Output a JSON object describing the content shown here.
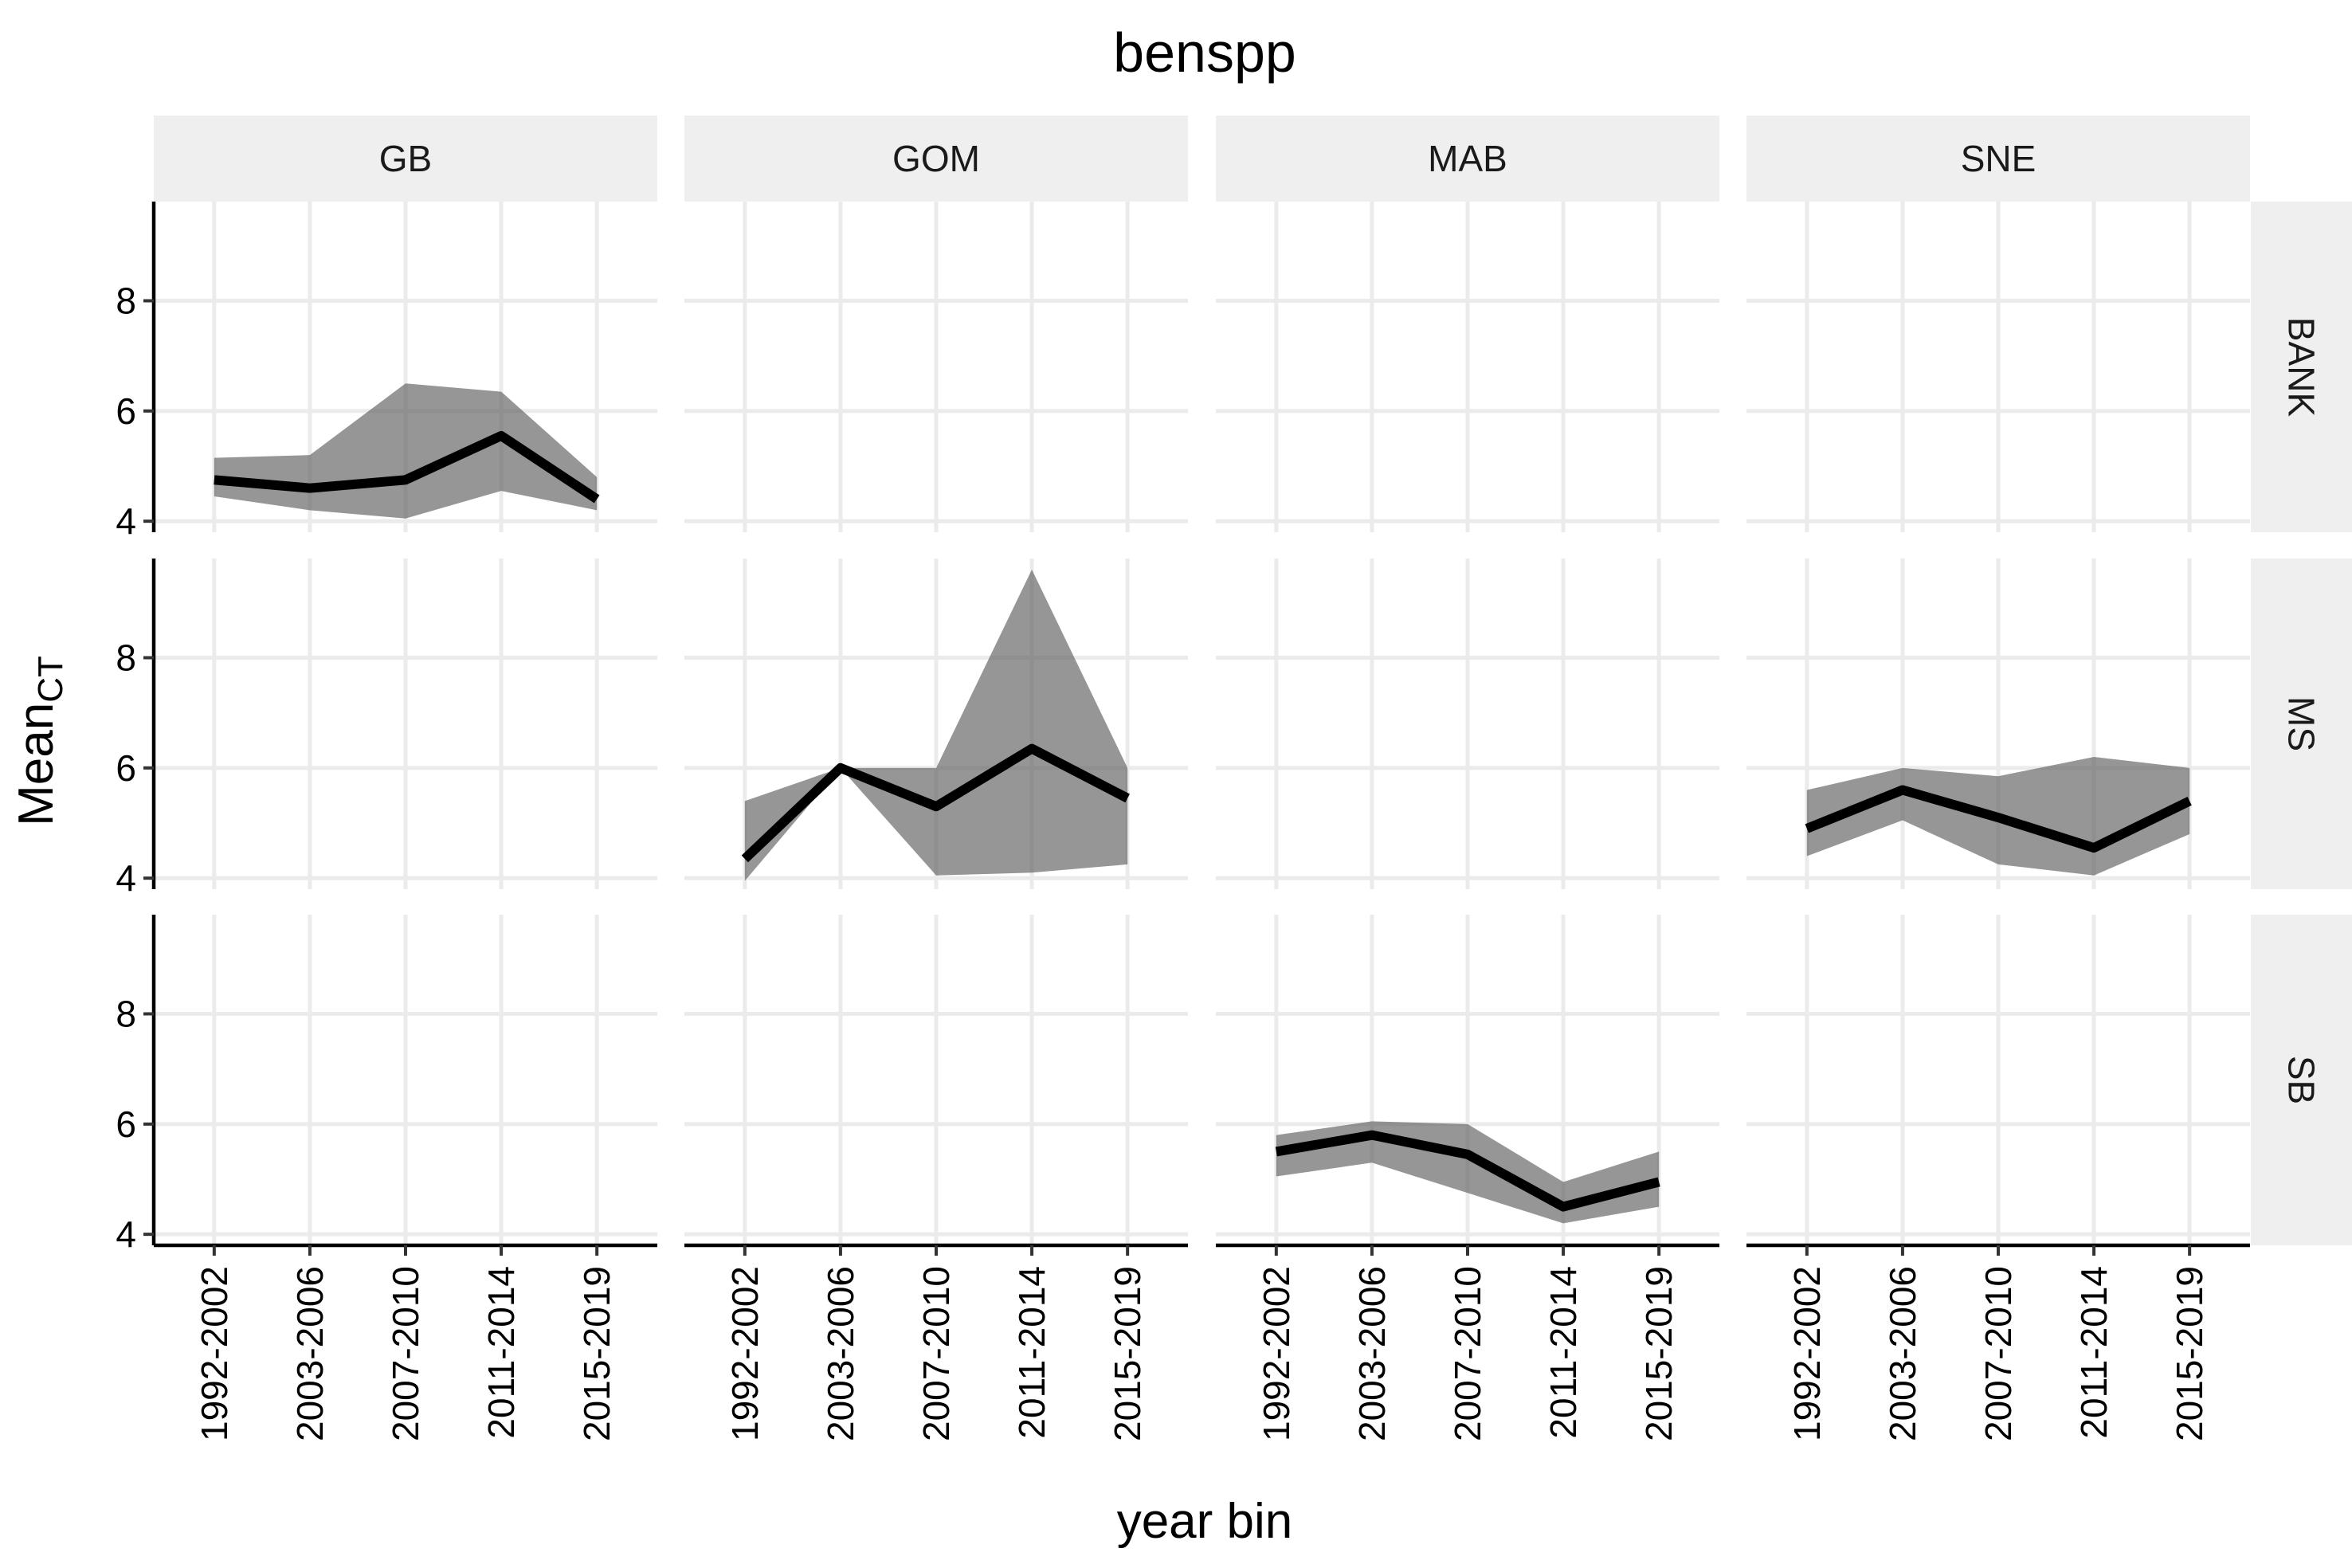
{
  "chart_data": {
    "type": "line",
    "title": "benspp",
    "xlabel": "year bin",
    "ylabel_main": "Mean",
    "ylabel_sub": "CT",
    "ylim": [
      3.8,
      9.8
    ],
    "yticks": [
      4,
      6,
      8
    ],
    "x_categories": [
      "1992-2002",
      "2003-2006",
      "2007-2010",
      "2011-2014",
      "2015-2019"
    ],
    "columns": [
      "GB",
      "GOM",
      "MAB",
      "SNE"
    ],
    "rows": [
      "BANK",
      "MS",
      "SB"
    ],
    "ribbon_color": "#5e5e5e",
    "line_color": "#000000",
    "panels": [
      {
        "row": "BANK",
        "col": "GB",
        "mean": [
          4.75,
          4.6,
          4.75,
          5.55,
          4.4
        ],
        "lower": [
          4.45,
          4.2,
          4.05,
          4.55,
          4.2
        ],
        "upper": [
          5.15,
          5.2,
          6.5,
          6.35,
          4.8
        ]
      },
      {
        "row": "MS",
        "col": "GOM",
        "mean": [
          4.35,
          6.0,
          5.3,
          6.35,
          5.45
        ],
        "lower": [
          3.95,
          6.0,
          4.05,
          4.1,
          4.25
        ],
        "upper": [
          5.4,
          6.0,
          6.0,
          9.6,
          6.0
        ]
      },
      {
        "row": "MS",
        "col": "SNE",
        "mean": [
          4.9,
          5.6,
          5.1,
          4.55,
          5.4
        ],
        "lower": [
          4.4,
          5.05,
          4.25,
          4.05,
          4.8
        ],
        "upper": [
          5.6,
          6.0,
          5.85,
          6.2,
          6.0
        ]
      },
      {
        "row": "SB",
        "col": "MAB",
        "mean": [
          5.5,
          5.8,
          5.45,
          4.5,
          4.95
        ],
        "lower": [
          5.05,
          5.3,
          4.75,
          4.2,
          4.5
        ],
        "upper": [
          5.8,
          6.05,
          6.0,
          4.95,
          5.5
        ]
      }
    ]
  }
}
